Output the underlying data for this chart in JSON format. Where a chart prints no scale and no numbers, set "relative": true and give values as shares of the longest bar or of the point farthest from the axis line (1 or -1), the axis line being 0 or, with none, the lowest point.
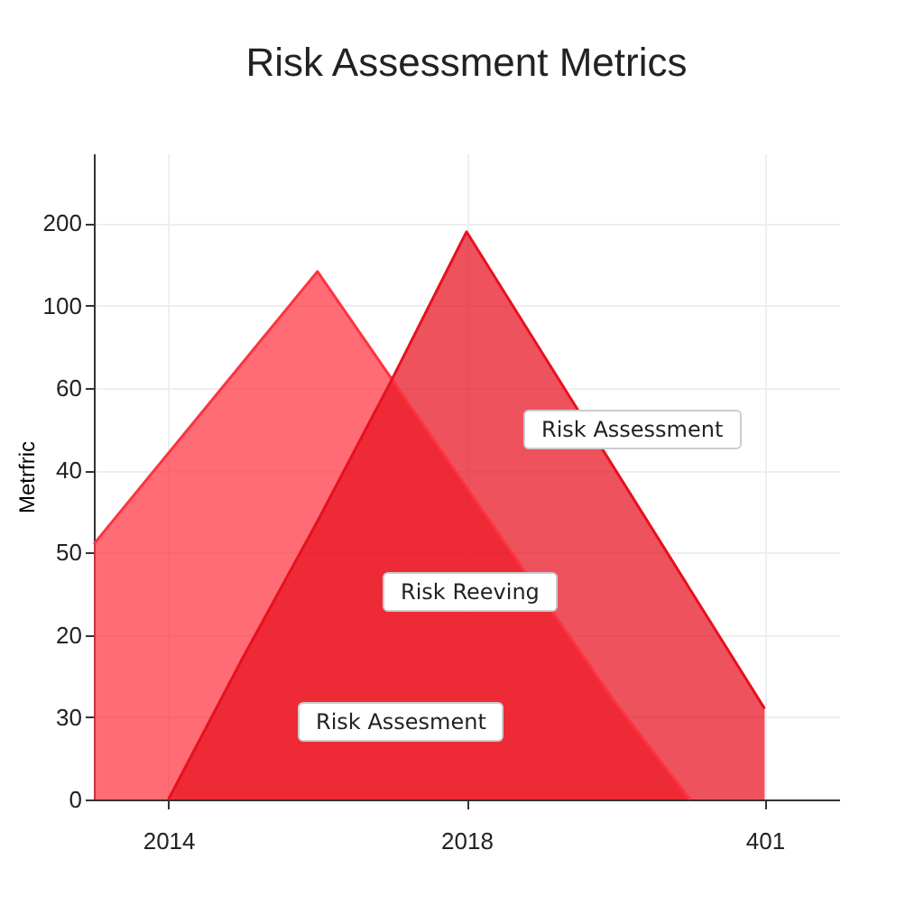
{
  "chart_data": {
    "type": "area",
    "title": "Risk Assessment Metrics",
    "ylabel": "Metrfric",
    "relative": true,
    "categories": [
      null,
      "2014",
      null,
      null,
      null,
      "2018",
      null,
      null,
      null,
      "401",
      null
    ],
    "series": [
      {
        "color": "#ff3340",
        "values": [
          0.45,
          0.61,
          0.77,
          0.93,
          0.74,
          0.55,
          null,
          0.17,
          0,
          null,
          null
        ]
      },
      {
        "color": "#e8101f",
        "values": [
          null,
          0,
          0.25,
          0.49,
          0.74,
          1,
          0.79,
          0.58,
          0.37,
          0.16,
          null
        ]
      }
    ],
    "grid": true,
    "annotations": [
      "0",
      "30",
      "20",
      "50",
      "40",
      "60",
      "100",
      "200",
      "Risk Assesment",
      "Risk Reeving",
      "Risk Assessment"
    ]
  }
}
